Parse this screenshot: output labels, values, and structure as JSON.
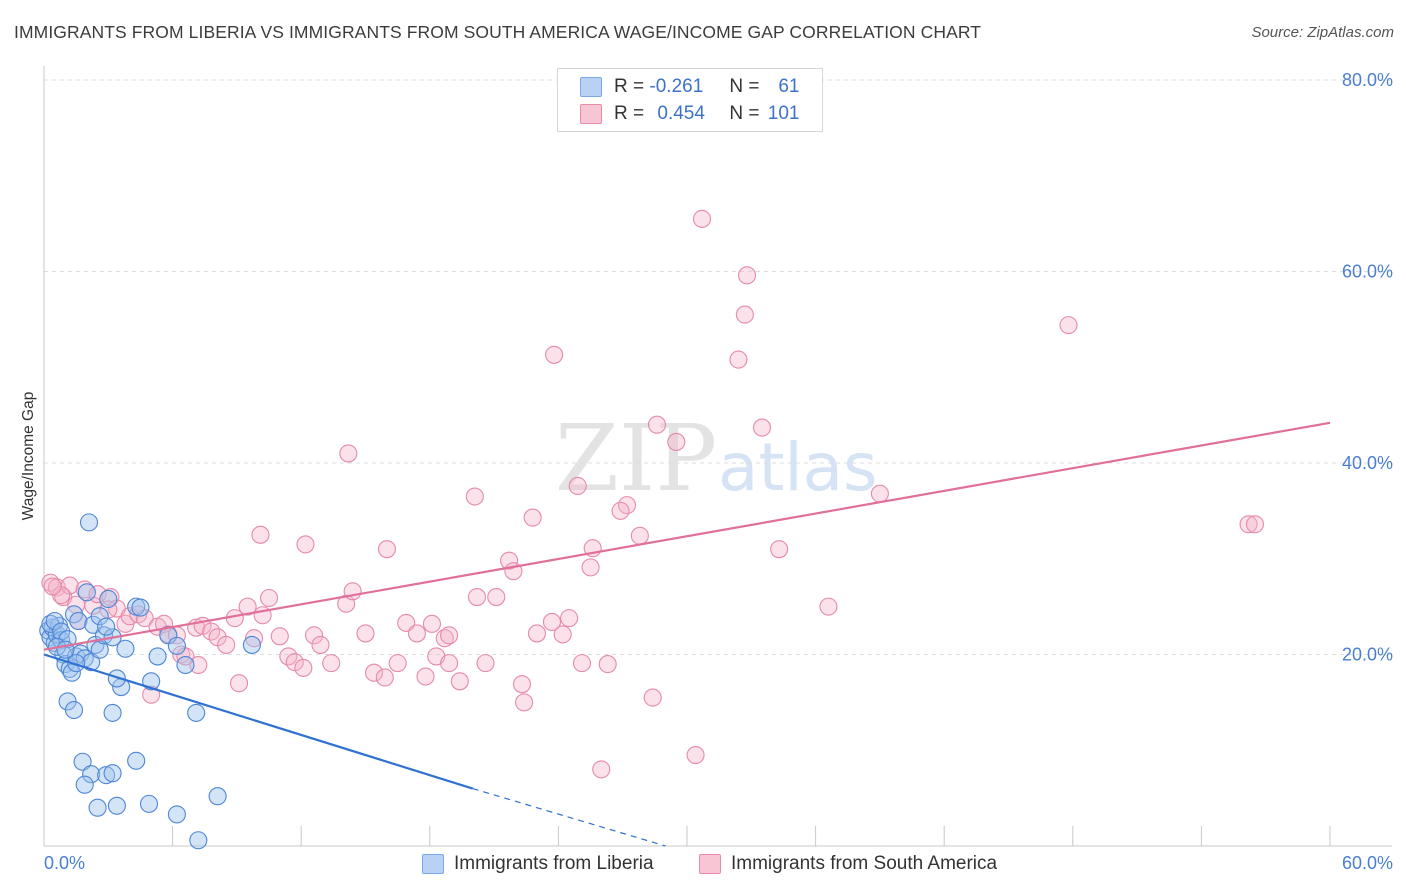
{
  "title": "IMMIGRANTS FROM LIBERIA VS IMMIGRANTS FROM SOUTH AMERICA WAGE/INCOME GAP CORRELATION CHART",
  "source": "Source: ZipAtlas.com",
  "watermark": {
    "zip": "ZIP",
    "atlas": "atlas"
  },
  "legend_stats": [
    {
      "r_label": "R =",
      "r": "-0.261",
      "n_label": "N =",
      "n": "61",
      "color": "#7aa9e6",
      "fill": "#b9d2f3"
    },
    {
      "r_label": "R =",
      "r": "0.454",
      "n_label": "N =",
      "n": "101",
      "color": "#e88aa8",
      "fill": "#f7c6d5"
    }
  ],
  "colors": {
    "liberia": "#3a7bd5",
    "south_america": "#e0709a",
    "tick_text": "#4a7fcf",
    "grid": "#d9d9d9"
  },
  "chart_data": {
    "type": "scatter",
    "ylabel": "Wage/Income Gap",
    "xlim": [
      0,
      60
    ],
    "ylim": [
      0,
      80
    ],
    "x_ticks": [
      "0.0%",
      "60.0%"
    ],
    "y_ticks": [
      "20.0%",
      "40.0%",
      "60.0%",
      "80.0%"
    ],
    "y_tick_values": [
      20,
      40,
      60,
      80
    ],
    "grid": "horizontal dashed",
    "legend_position": "bottom",
    "series": [
      {
        "name": "Immigrants from Liberia",
        "points": [
          [
            0.2,
            22.5
          ],
          [
            0.3,
            21.8
          ],
          [
            0.4,
            22.8
          ],
          [
            0.5,
            21.2
          ],
          [
            0.6,
            22.1
          ],
          [
            0.7,
            23.0
          ],
          [
            0.8,
            21.5
          ],
          [
            0.9,
            20.0
          ],
          [
            1.0,
            19.0
          ],
          [
            1.2,
            18.5
          ],
          [
            1.4,
            24.2
          ],
          [
            1.5,
            19.8
          ],
          [
            1.6,
            23.5
          ],
          [
            1.7,
            20.1
          ],
          [
            1.9,
            19.6
          ],
          [
            2.0,
            26.5
          ],
          [
            2.2,
            19.2
          ],
          [
            2.3,
            23.1
          ],
          [
            2.4,
            21.0
          ],
          [
            2.6,
            20.5
          ],
          [
            2.8,
            22.0
          ],
          [
            3.0,
            25.8
          ],
          [
            3.2,
            21.8
          ],
          [
            3.6,
            16.6
          ],
          [
            3.8,
            20.6
          ],
          [
            4.3,
            25.0
          ],
          [
            4.5,
            24.9
          ],
          [
            5.0,
            17.2
          ],
          [
            5.3,
            19.8
          ],
          [
            5.8,
            22.0
          ],
          [
            6.2,
            20.9
          ],
          [
            6.6,
            18.9
          ],
          [
            2.1,
            33.8
          ],
          [
            1.1,
            15.1
          ],
          [
            1.4,
            14.2
          ],
          [
            3.2,
            13.9
          ],
          [
            7.1,
            13.9
          ],
          [
            3.4,
            17.5
          ],
          [
            9.7,
            21.0
          ],
          [
            1.8,
            8.8
          ],
          [
            2.2,
            7.5
          ],
          [
            2.9,
            7.4
          ],
          [
            3.2,
            7.6
          ],
          [
            4.3,
            8.9
          ],
          [
            1.9,
            6.4
          ],
          [
            2.5,
            4.0
          ],
          [
            3.4,
            4.2
          ],
          [
            4.9,
            4.4
          ],
          [
            6.2,
            3.3
          ],
          [
            8.1,
            5.2
          ],
          [
            7.2,
            0.6
          ],
          [
            0.3,
            23.2
          ],
          [
            0.5,
            23.5
          ],
          [
            0.8,
            22.4
          ],
          [
            1.1,
            21.6
          ],
          [
            1.3,
            18.1
          ],
          [
            2.6,
            24.0
          ],
          [
            2.9,
            22.9
          ],
          [
            1.5,
            19.1
          ],
          [
            0.6,
            20.8
          ],
          [
            1.0,
            20.5
          ]
        ]
      },
      {
        "name": "Immigrants from South America",
        "points": [
          [
            0.3,
            27.5
          ],
          [
            0.6,
            27.0
          ],
          [
            0.9,
            26.0
          ],
          [
            1.2,
            27.2
          ],
          [
            1.5,
            25.2
          ],
          [
            1.9,
            26.8
          ],
          [
            2.3,
            25.1
          ],
          [
            2.5,
            26.3
          ],
          [
            3.1,
            26.0
          ],
          [
            3.4,
            24.8
          ],
          [
            3.8,
            23.2
          ],
          [
            4.0,
            24.0
          ],
          [
            4.4,
            24.2
          ],
          [
            4.7,
            23.8
          ],
          [
            5.3,
            22.9
          ],
          [
            5.6,
            23.2
          ],
          [
            5.8,
            22.1
          ],
          [
            6.2,
            22.0
          ],
          [
            6.4,
            20.0
          ],
          [
            6.6,
            19.8
          ],
          [
            7.1,
            22.8
          ],
          [
            7.4,
            23.0
          ],
          [
            7.8,
            22.4
          ],
          [
            8.1,
            21.8
          ],
          [
            8.5,
            21.0
          ],
          [
            8.9,
            23.8
          ],
          [
            9.5,
            25.0
          ],
          [
            9.8,
            21.7
          ],
          [
            10.2,
            24.1
          ],
          [
            10.5,
            25.9
          ],
          [
            11.0,
            21.9
          ],
          [
            11.4,
            19.8
          ],
          [
            11.7,
            19.2
          ],
          [
            12.1,
            18.6
          ],
          [
            12.6,
            22.0
          ],
          [
            12.9,
            21.0
          ],
          [
            13.4,
            19.1
          ],
          [
            14.1,
            25.3
          ],
          [
            14.4,
            26.6
          ],
          [
            15.0,
            22.2
          ],
          [
            15.4,
            18.1
          ],
          [
            15.9,
            17.6
          ],
          [
            16.5,
            19.1
          ],
          [
            16.9,
            23.3
          ],
          [
            17.4,
            22.2
          ],
          [
            17.8,
            17.7
          ],
          [
            18.1,
            23.2
          ],
          [
            18.3,
            19.8
          ],
          [
            18.7,
            21.7
          ],
          [
            18.9,
            22.0
          ],
          [
            19.4,
            17.2
          ],
          [
            20.2,
            26.0
          ],
          [
            20.6,
            19.1
          ],
          [
            21.1,
            26.0
          ],
          [
            21.7,
            29.8
          ],
          [
            22.3,
            16.9
          ],
          [
            22.8,
            34.3
          ],
          [
            23.0,
            22.2
          ],
          [
            23.7,
            23.4
          ],
          [
            24.2,
            22.1
          ],
          [
            24.5,
            23.8
          ],
          [
            25.1,
            19.1
          ],
          [
            25.6,
            31.1
          ],
          [
            26.3,
            19.0
          ],
          [
            27.2,
            35.6
          ],
          [
            27.8,
            32.4
          ],
          [
            28.6,
            44.0
          ],
          [
            28.4,
            15.5
          ],
          [
            29.5,
            42.2
          ],
          [
            30.4,
            9.5
          ],
          [
            30.7,
            65.5
          ],
          [
            32.4,
            50.8
          ],
          [
            32.8,
            59.6
          ],
          [
            32.7,
            55.5
          ],
          [
            33.5,
            43.7
          ],
          [
            34.3,
            31.0
          ],
          [
            36.6,
            25.0
          ],
          [
            39.0,
            36.8
          ],
          [
            47.8,
            54.4
          ],
          [
            56.2,
            33.6
          ],
          [
            56.5,
            33.6
          ],
          [
            20.1,
            36.5
          ],
          [
            14.2,
            41.0
          ],
          [
            16.0,
            31.0
          ],
          [
            18.9,
            19.1
          ],
          [
            12.2,
            31.5
          ],
          [
            10.1,
            32.5
          ],
          [
            23.8,
            51.3
          ],
          [
            24.9,
            37.6
          ],
          [
            25.5,
            29.1
          ],
          [
            26.9,
            35.0
          ],
          [
            26.0,
            8.0
          ],
          [
            22.4,
            15.0
          ],
          [
            21.9,
            28.7
          ],
          [
            7.2,
            18.9
          ],
          [
            9.1,
            17.0
          ],
          [
            5.0,
            15.8
          ],
          [
            3.0,
            24.7
          ],
          [
            1.6,
            23.5
          ],
          [
            0.8,
            26.2
          ],
          [
            0.4,
            27.1
          ]
        ]
      }
    ],
    "trend_lines": [
      {
        "series": "Immigrants from Liberia",
        "from": [
          0,
          20.0
        ],
        "to": [
          20,
          6.0
        ],
        "dashed_to": [
          29.0,
          0.0
        ]
      },
      {
        "series": "Immigrants from South America",
        "from": [
          0,
          20.5
        ],
        "to": [
          60,
          44.2
        ]
      }
    ]
  }
}
